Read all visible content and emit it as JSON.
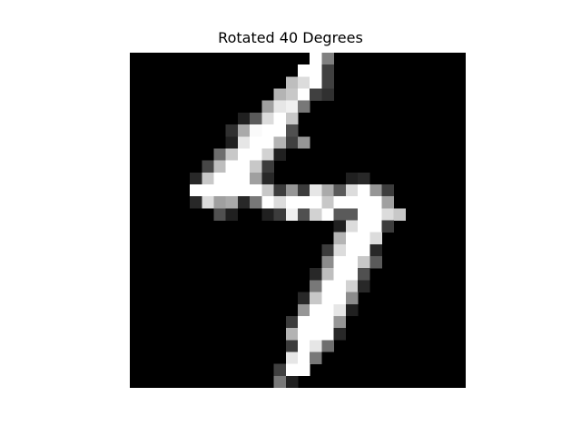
{
  "figure": {
    "title": "Rotated 40 Degrees",
    "image": {
      "kind": "grayscale digit image",
      "grid": {
        "rows": 28,
        "cols": 28
      },
      "background_color": "#000000",
      "highlight_color": "#ffffff",
      "pixels": [
        {
          "r": 0,
          "c": 15,
          "v": 255
        },
        {
          "r": 0,
          "c": 16,
          "v": 128
        },
        {
          "r": 1,
          "c": 14,
          "v": 255
        },
        {
          "r": 1,
          "c": 15,
          "v": 255
        },
        {
          "r": 1,
          "c": 16,
          "v": 64
        },
        {
          "r": 2,
          "c": 13,
          "v": 190
        },
        {
          "r": 2,
          "c": 14,
          "v": 220
        },
        {
          "r": 2,
          "c": 15,
          "v": 255
        },
        {
          "r": 2,
          "c": 16,
          "v": 64
        },
        {
          "r": 3,
          "c": 12,
          "v": 180
        },
        {
          "r": 3,
          "c": 13,
          "v": 200
        },
        {
          "r": 3,
          "c": 14,
          "v": 255
        },
        {
          "r": 3,
          "c": 15,
          "v": 64
        },
        {
          "r": 3,
          "c": 16,
          "v": 48
        },
        {
          "r": 4,
          "c": 11,
          "v": 160
        },
        {
          "r": 4,
          "c": 12,
          "v": 230
        },
        {
          "r": 4,
          "c": 13,
          "v": 240
        },
        {
          "r": 4,
          "c": 14,
          "v": 120
        },
        {
          "r": 5,
          "c": 9,
          "v": 32
        },
        {
          "r": 5,
          "c": 10,
          "v": 90
        },
        {
          "r": 5,
          "c": 11,
          "v": 220
        },
        {
          "r": 5,
          "c": 12,
          "v": 255
        },
        {
          "r": 5,
          "c": 13,
          "v": 200
        },
        {
          "r": 6,
          "c": 8,
          "v": 48
        },
        {
          "r": 6,
          "c": 9,
          "v": 170
        },
        {
          "r": 6,
          "c": 10,
          "v": 250
        },
        {
          "r": 6,
          "c": 11,
          "v": 255
        },
        {
          "r": 6,
          "c": 12,
          "v": 255
        },
        {
          "r": 6,
          "c": 13,
          "v": 80
        },
        {
          "r": 7,
          "c": 8,
          "v": 32
        },
        {
          "r": 7,
          "c": 9,
          "v": 230
        },
        {
          "r": 7,
          "c": 10,
          "v": 255
        },
        {
          "r": 7,
          "c": 11,
          "v": 255
        },
        {
          "r": 7,
          "c": 12,
          "v": 180
        },
        {
          "r": 7,
          "c": 13,
          "v": 64
        },
        {
          "r": 7,
          "c": 14,
          "v": 150
        },
        {
          "r": 8,
          "c": 7,
          "v": 110
        },
        {
          "r": 8,
          "c": 8,
          "v": 200
        },
        {
          "r": 8,
          "c": 9,
          "v": 255
        },
        {
          "r": 8,
          "c": 10,
          "v": 255
        },
        {
          "r": 8,
          "c": 11,
          "v": 210
        },
        {
          "r": 8,
          "c": 12,
          "v": 32
        },
        {
          "r": 9,
          "c": 6,
          "v": 70
        },
        {
          "r": 9,
          "c": 7,
          "v": 190
        },
        {
          "r": 9,
          "c": 8,
          "v": 255
        },
        {
          "r": 9,
          "c": 9,
          "v": 255
        },
        {
          "r": 9,
          "c": 10,
          "v": 200
        },
        {
          "r": 9,
          "c": 11,
          "v": 60
        },
        {
          "r": 10,
          "c": 5,
          "v": 40
        },
        {
          "r": 10,
          "c": 6,
          "v": 200
        },
        {
          "r": 10,
          "c": 7,
          "v": 255
        },
        {
          "r": 10,
          "c": 8,
          "v": 255
        },
        {
          "r": 10,
          "c": 9,
          "v": 255
        },
        {
          "r": 10,
          "c": 10,
          "v": 160
        },
        {
          "r": 10,
          "c": 11,
          "v": 40
        },
        {
          "r": 10,
          "c": 18,
          "v": 32
        },
        {
          "r": 10,
          "c": 19,
          "v": 40
        },
        {
          "r": 11,
          "c": 5,
          "v": 255
        },
        {
          "r": 11,
          "c": 6,
          "v": 255
        },
        {
          "r": 11,
          "c": 7,
          "v": 255
        },
        {
          "r": 11,
          "c": 8,
          "v": 255
        },
        {
          "r": 11,
          "c": 9,
          "v": 255
        },
        {
          "r": 11,
          "c": 10,
          "v": 255
        },
        {
          "r": 11,
          "c": 11,
          "v": 200
        },
        {
          "r": 11,
          "c": 12,
          "v": 60
        },
        {
          "r": 11,
          "c": 13,
          "v": 150
        },
        {
          "r": 11,
          "c": 14,
          "v": 60
        },
        {
          "r": 11,
          "c": 15,
          "v": 230
        },
        {
          "r": 11,
          "c": 16,
          "v": 170
        },
        {
          "r": 11,
          "c": 17,
          "v": 90
        },
        {
          "r": 11,
          "c": 18,
          "v": 220
        },
        {
          "r": 11,
          "c": 19,
          "v": 255
        },
        {
          "r": 11,
          "c": 20,
          "v": 150
        },
        {
          "r": 11,
          "c": 21,
          "v": 60
        },
        {
          "r": 12,
          "c": 5,
          "v": 40
        },
        {
          "r": 12,
          "c": 6,
          "v": 220
        },
        {
          "r": 12,
          "c": 7,
          "v": 160
        },
        {
          "r": 12,
          "c": 8,
          "v": 170
        },
        {
          "r": 12,
          "c": 9,
          "v": 40
        },
        {
          "r": 12,
          "c": 10,
          "v": 120
        },
        {
          "r": 12,
          "c": 11,
          "v": 255
        },
        {
          "r": 12,
          "c": 12,
          "v": 220
        },
        {
          "r": 12,
          "c": 13,
          "v": 255
        },
        {
          "r": 12,
          "c": 14,
          "v": 255
        },
        {
          "r": 12,
          "c": 15,
          "v": 255
        },
        {
          "r": 12,
          "c": 16,
          "v": 200
        },
        {
          "r": 12,
          "c": 17,
          "v": 255
        },
        {
          "r": 12,
          "c": 18,
          "v": 255
        },
        {
          "r": 12,
          "c": 19,
          "v": 255
        },
        {
          "r": 12,
          "c": 20,
          "v": 255
        },
        {
          "r": 12,
          "c": 21,
          "v": 160
        },
        {
          "r": 13,
          "c": 7,
          "v": 80
        },
        {
          "r": 13,
          "c": 8,
          "v": 32
        },
        {
          "r": 13,
          "c": 11,
          "v": 32
        },
        {
          "r": 13,
          "c": 12,
          "v": 60
        },
        {
          "r": 13,
          "c": 13,
          "v": 240
        },
        {
          "r": 13,
          "c": 14,
          "v": 80
        },
        {
          "r": 13,
          "c": 15,
          "v": 210
        },
        {
          "r": 13,
          "c": 16,
          "v": 255
        },
        {
          "r": 13,
          "c": 17,
          "v": 90
        },
        {
          "r": 13,
          "c": 18,
          "v": 90
        },
        {
          "r": 13,
          "c": 19,
          "v": 255
        },
        {
          "r": 13,
          "c": 20,
          "v": 255
        },
        {
          "r": 13,
          "c": 21,
          "v": 220
        },
        {
          "r": 13,
          "c": 22,
          "v": 200
        },
        {
          "r": 14,
          "c": 17,
          "v": 32
        },
        {
          "r": 14,
          "c": 18,
          "v": 220
        },
        {
          "r": 14,
          "c": 19,
          "v": 255
        },
        {
          "r": 14,
          "c": 20,
          "v": 255
        },
        {
          "r": 14,
          "c": 21,
          "v": 60
        },
        {
          "r": 15,
          "c": 17,
          "v": 180
        },
        {
          "r": 15,
          "c": 18,
          "v": 255
        },
        {
          "r": 15,
          "c": 19,
          "v": 255
        },
        {
          "r": 15,
          "c": 20,
          "v": 220
        },
        {
          "r": 16,
          "c": 16,
          "v": 60
        },
        {
          "r": 16,
          "c": 17,
          "v": 220
        },
        {
          "r": 16,
          "c": 18,
          "v": 255
        },
        {
          "r": 16,
          "c": 19,
          "v": 255
        },
        {
          "r": 16,
          "c": 20,
          "v": 40
        },
        {
          "r": 17,
          "c": 16,
          "v": 140
        },
        {
          "r": 17,
          "c": 17,
          "v": 255
        },
        {
          "r": 17,
          "c": 18,
          "v": 255
        },
        {
          "r": 17,
          "c": 19,
          "v": 200
        },
        {
          "r": 17,
          "c": 20,
          "v": 90
        },
        {
          "r": 18,
          "c": 15,
          "v": 40
        },
        {
          "r": 18,
          "c": 16,
          "v": 190
        },
        {
          "r": 18,
          "c": 17,
          "v": 255
        },
        {
          "r": 18,
          "c": 18,
          "v": 255
        },
        {
          "r": 18,
          "c": 19,
          "v": 80
        },
        {
          "r": 19,
          "c": 15,
          "v": 120
        },
        {
          "r": 19,
          "c": 16,
          "v": 255
        },
        {
          "r": 19,
          "c": 17,
          "v": 255
        },
        {
          "r": 19,
          "c": 18,
          "v": 210
        },
        {
          "r": 19,
          "c": 19,
          "v": 40
        },
        {
          "r": 20,
          "c": 14,
          "v": 40
        },
        {
          "r": 20,
          "c": 15,
          "v": 200
        },
        {
          "r": 20,
          "c": 16,
          "v": 255
        },
        {
          "r": 20,
          "c": 17,
          "v": 255
        },
        {
          "r": 20,
          "c": 18,
          "v": 140
        },
        {
          "r": 21,
          "c": 14,
          "v": 150
        },
        {
          "r": 21,
          "c": 15,
          "v": 255
        },
        {
          "r": 21,
          "c": 16,
          "v": 255
        },
        {
          "r": 21,
          "c": 17,
          "v": 230
        },
        {
          "r": 21,
          "c": 18,
          "v": 32
        },
        {
          "r": 22,
          "c": 13,
          "v": 60
        },
        {
          "r": 22,
          "c": 14,
          "v": 255
        },
        {
          "r": 22,
          "c": 15,
          "v": 255
        },
        {
          "r": 22,
          "c": 16,
          "v": 255
        },
        {
          "r": 22,
          "c": 17,
          "v": 150
        },
        {
          "r": 23,
          "c": 13,
          "v": 180
        },
        {
          "r": 23,
          "c": 14,
          "v": 255
        },
        {
          "r": 23,
          "c": 15,
          "v": 255
        },
        {
          "r": 23,
          "c": 16,
          "v": 255
        },
        {
          "r": 23,
          "c": 17,
          "v": 40
        },
        {
          "r": 24,
          "c": 13,
          "v": 60
        },
        {
          "r": 24,
          "c": 14,
          "v": 255
        },
        {
          "r": 24,
          "c": 15,
          "v": 230
        },
        {
          "r": 24,
          "c": 16,
          "v": 110
        },
        {
          "r": 25,
          "c": 13,
          "v": 230
        },
        {
          "r": 25,
          "c": 14,
          "v": 255
        },
        {
          "r": 25,
          "c": 15,
          "v": 120
        },
        {
          "r": 26,
          "c": 12,
          "v": 64
        },
        {
          "r": 26,
          "c": 13,
          "v": 255
        },
        {
          "r": 26,
          "c": 14,
          "v": 255
        },
        {
          "r": 27,
          "c": 12,
          "v": 120
        },
        {
          "r": 27,
          "c": 13,
          "v": 32
        }
      ]
    }
  }
}
